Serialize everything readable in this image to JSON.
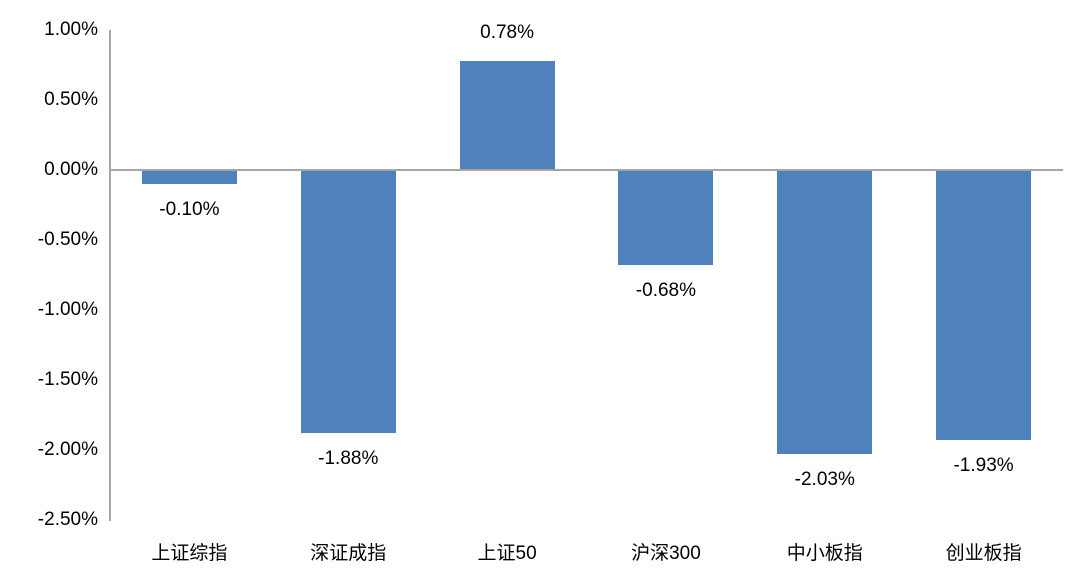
{
  "chart_data": {
    "type": "bar",
    "title": "",
    "xlabel": "",
    "ylabel": "",
    "unit": "%",
    "categories": [
      "上证综指",
      "深证成指",
      "上证50",
      "沪深300",
      "中小板指",
      "创业板指"
    ],
    "values": [
      -0.1,
      -1.88,
      0.78,
      -0.68,
      -2.03,
      -1.93
    ],
    "value_labels": [
      "-0.10%",
      "-1.88%",
      "0.78%",
      "-0.68%",
      "-2.03%",
      "-1.93%"
    ],
    "y_ticks": [
      {
        "value": 1.0,
        "label": "1.00%"
      },
      {
        "value": 0.5,
        "label": "0.50%"
      },
      {
        "value": 0.0,
        "label": "0.00%"
      },
      {
        "value": -0.5,
        "label": "-0.50%"
      },
      {
        "value": -1.0,
        "label": "-1.00%"
      },
      {
        "value": -1.5,
        "label": "-1.50%"
      },
      {
        "value": -2.0,
        "label": "-2.00%"
      },
      {
        "value": -2.5,
        "label": "-2.50%"
      }
    ],
    "ylim": [
      -2.5,
      1.0
    ],
    "grid": false,
    "legend": "none",
    "colors": {
      "bar": "#4F81BD",
      "axis": "#A6A6A6",
      "text": "#000000",
      "background": "#FFFFFF"
    }
  }
}
